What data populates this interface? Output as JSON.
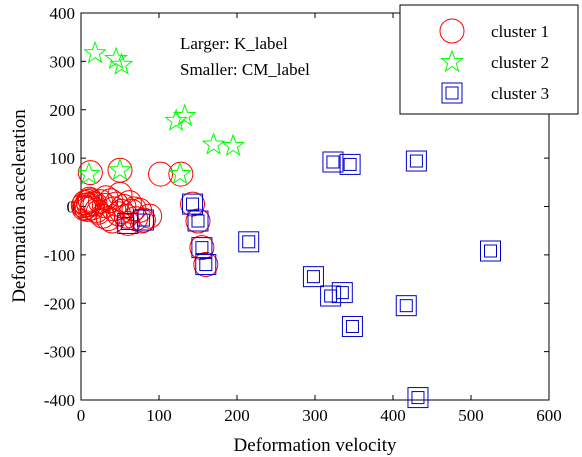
{
  "chart_data": {
    "type": "scatter",
    "xlabel": "Deformation velocity",
    "ylabel": "Deformation acceleration",
    "xlim": [
      0,
      600
    ],
    "ylim": [
      -400,
      400
    ],
    "xticks": [
      "0",
      "100",
      "200",
      "300",
      "400",
      "500",
      "600"
    ],
    "yticks": [
      "400",
      "300",
      "200",
      "100",
      "0",
      "-100",
      "-200",
      "-300",
      "-400"
    ],
    "grid": false,
    "legend_position": "top-right",
    "annotation_lines": [
      "Larger: K_label",
      "Smaller: CM_label"
    ],
    "series": [
      {
        "name": "cluster 1",
        "marker": "circle",
        "color": "#ff0000",
        "points": [
          [
            3,
            2
          ],
          [
            5,
            8
          ],
          [
            8,
            -6
          ],
          [
            10,
            4
          ],
          [
            12,
            12
          ],
          [
            6,
            -2
          ],
          [
            15,
            6
          ],
          [
            9,
            10
          ],
          [
            4,
            -4
          ],
          [
            14,
            -3
          ],
          [
            18,
            5
          ],
          [
            20,
            -8
          ],
          [
            11,
            15
          ],
          [
            7,
            3
          ],
          [
            22,
            -12
          ],
          [
            25,
            10
          ],
          [
            28,
            -20
          ],
          [
            30,
            2
          ],
          [
            32,
            18
          ],
          [
            35,
            -25
          ],
          [
            38,
            12
          ],
          [
            40,
            -30
          ],
          [
            42,
            -5
          ],
          [
            45,
            5
          ],
          [
            48,
            -15
          ],
          [
            50,
            25
          ],
          [
            52,
            -10
          ],
          [
            55,
            0
          ],
          [
            58,
            -20
          ],
          [
            60,
            -35
          ],
          [
            62,
            8
          ],
          [
            65,
            -10
          ],
          [
            68,
            -5
          ],
          [
            70,
            -25
          ],
          [
            75,
            -8
          ],
          [
            78,
            -30
          ],
          [
            80,
            -28
          ],
          [
            12,
            70
          ],
          [
            50,
            75
          ],
          [
            102,
            67
          ],
          [
            128,
            67
          ],
          [
            88,
            -20
          ],
          [
            143,
            5
          ],
          [
            150,
            -30
          ],
          [
            155,
            -85
          ],
          [
            160,
            -120
          ]
        ]
      },
      {
        "name": "cluster 2",
        "marker": "star",
        "color": "#00ff00",
        "points": [
          [
            18,
            317
          ],
          [
            45,
            305
          ],
          [
            52,
            293
          ],
          [
            122,
            177
          ],
          [
            133,
            187
          ],
          [
            170,
            128
          ],
          [
            195,
            125
          ],
          [
            10,
            67
          ],
          [
            50,
            75
          ],
          [
            127,
            67
          ]
        ]
      },
      {
        "name": "cluster 3",
        "marker": "square",
        "color": "#0000cc",
        "points": [
          [
            323,
            92
          ],
          [
            345,
            87
          ],
          [
            430,
            94
          ],
          [
            215,
            -73
          ],
          [
            298,
            -145
          ],
          [
            320,
            -185
          ],
          [
            335,
            -178
          ],
          [
            348,
            -248
          ],
          [
            417,
            -205
          ],
          [
            525,
            -92
          ],
          [
            432,
            -395
          ],
          [
            143,
            5
          ],
          [
            150,
            -30
          ],
          [
            155,
            -85
          ],
          [
            160,
            -120
          ],
          [
            80,
            -28
          ],
          [
            60,
            -35
          ]
        ]
      }
    ]
  }
}
